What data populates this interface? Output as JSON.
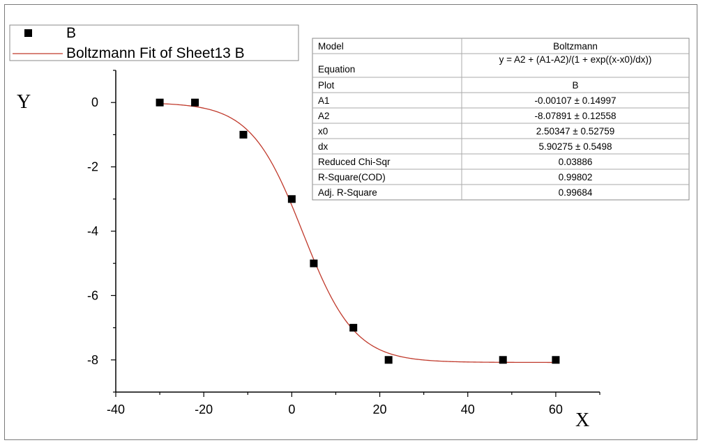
{
  "chart_data": {
    "type": "scatter",
    "xlabel": "X",
    "ylabel": "Y",
    "xlim": [
      -40,
      70
    ],
    "ylim": [
      -9,
      1
    ],
    "xticks": [
      -40,
      -20,
      0,
      20,
      40,
      60
    ],
    "yticks": [
      0,
      -2,
      -4,
      -6,
      -8
    ],
    "grid": false,
    "legend_position": "top-left",
    "series": [
      {
        "name": "B",
        "kind": "scatter",
        "color": "#000000",
        "x": [
          -30,
          -22,
          -11,
          0,
          5,
          14,
          22,
          48,
          60
        ],
        "y": [
          0,
          0,
          -1,
          -3,
          -5,
          -7,
          -8,
          -8,
          -8
        ]
      },
      {
        "name": "Boltzmann Fit of Sheet13 B",
        "kind": "line",
        "color": "#c0392b",
        "model": "boltzmann",
        "params": {
          "A1": -0.00107,
          "A2": -8.07891,
          "x0": 2.50347,
          "dx": 5.90275
        },
        "x_range": [
          -30,
          60
        ]
      }
    ],
    "fit_table": [
      [
        "Model",
        "Boltzmann"
      ],
      [
        "Equation",
        "y = A2 + (A1-A2)/(1 + exp((x-x0)/dx))"
      ],
      [
        "Plot",
        "B"
      ],
      [
        "A1",
        "-0.00107 ± 0.14997"
      ],
      [
        "A2",
        "-8.07891 ± 0.12558"
      ],
      [
        "x0",
        "2.50347 ± 0.52759"
      ],
      [
        "dx",
        "5.90275 ± 0.5498"
      ],
      [
        "Reduced Chi-Sqr",
        "0.03886"
      ],
      [
        "R-Square(COD)",
        "0.99802"
      ],
      [
        "Adj. R-Square",
        "0.99684"
      ]
    ]
  }
}
